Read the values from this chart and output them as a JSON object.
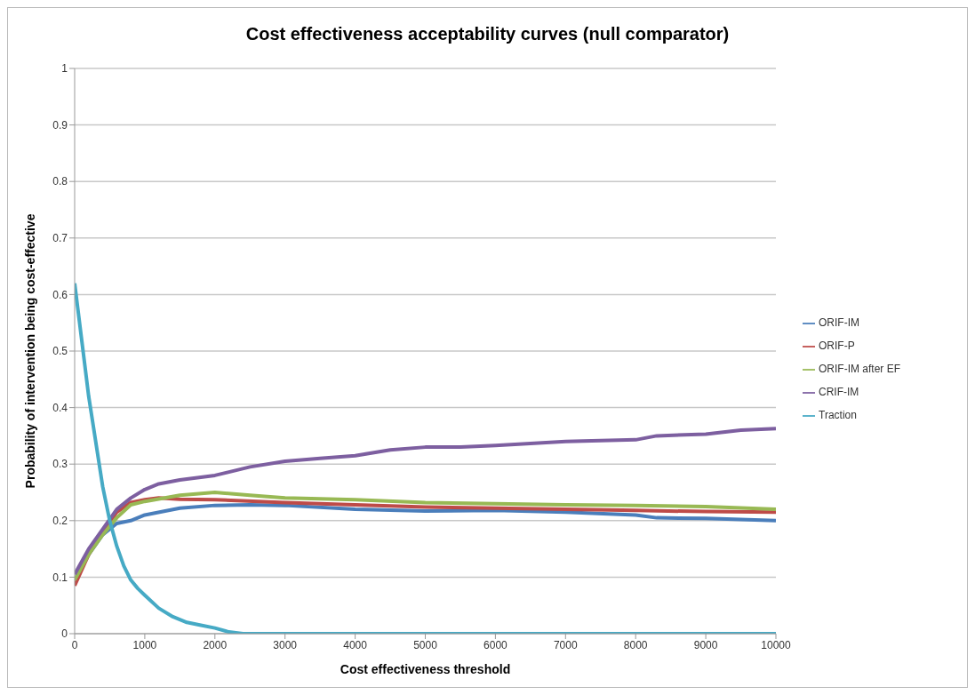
{
  "chart_data": {
    "type": "line",
    "title": "Cost effectiveness acceptability curves (null comparator)",
    "xlabel": "Cost effectiveness threshold",
    "ylabel": "Probability of intervention being cost-effective",
    "xlim": [
      0,
      10000
    ],
    "xticks": [
      0,
      1000,
      2000,
      3000,
      4000,
      5000,
      6000,
      7000,
      8000,
      9000,
      10000
    ],
    "ylim": [
      0,
      1
    ],
    "yticks": [
      0,
      0.1,
      0.2,
      0.3,
      0.4,
      0.5,
      0.6,
      0.7,
      0.8,
      0.9,
      1
    ],
    "grid": "y",
    "legend": "right",
    "marker": "none",
    "line_style": "solid",
    "series": [
      {
        "name": "ORIF-IM",
        "color": "#4a7ebb",
        "x": [
          0,
          200,
          400,
          600,
          800,
          1000,
          1500,
          2000,
          2500,
          3000,
          4000,
          5000,
          6000,
          7000,
          8000,
          8300,
          9000,
          10000
        ],
        "values": [
          0.095,
          0.14,
          0.175,
          0.195,
          0.2,
          0.21,
          0.222,
          0.227,
          0.228,
          0.227,
          0.22,
          0.217,
          0.218,
          0.215,
          0.21,
          0.205,
          0.204,
          0.2
        ]
      },
      {
        "name": "ORIF-P",
        "color": "#be4b48",
        "x": [
          0,
          200,
          400,
          600,
          800,
          1000,
          1200,
          1500,
          2000,
          3000,
          4000,
          5000,
          6000,
          7000,
          8000,
          9000,
          10000
        ],
        "values": [
          0.085,
          0.14,
          0.18,
          0.215,
          0.232,
          0.237,
          0.24,
          0.238,
          0.237,
          0.232,
          0.228,
          0.224,
          0.222,
          0.22,
          0.218,
          0.216,
          0.215
        ]
      },
      {
        "name": "ORIF-IM after EF",
        "color": "#98b954",
        "x": [
          0,
          200,
          400,
          600,
          800,
          1000,
          1500,
          2000,
          2500,
          3000,
          4000,
          5000,
          6000,
          7000,
          8000,
          9000,
          10000
        ],
        "values": [
          0.095,
          0.14,
          0.175,
          0.205,
          0.228,
          0.234,
          0.245,
          0.25,
          0.245,
          0.24,
          0.237,
          0.232,
          0.23,
          0.228,
          0.227,
          0.225,
          0.22
        ]
      },
      {
        "name": "CRIF-IM",
        "color": "#7d5fa0",
        "x": [
          0,
          200,
          400,
          600,
          800,
          1000,
          1200,
          1500,
          2000,
          2500,
          3000,
          3500,
          4000,
          4500,
          5000,
          5500,
          6000,
          7000,
          8000,
          8300,
          9000,
          9500,
          10000
        ],
        "values": [
          0.105,
          0.15,
          0.185,
          0.22,
          0.24,
          0.255,
          0.265,
          0.272,
          0.28,
          0.295,
          0.305,
          0.31,
          0.315,
          0.325,
          0.33,
          0.33,
          0.333,
          0.34,
          0.343,
          0.35,
          0.353,
          0.36,
          0.363
        ]
      },
      {
        "name": "Traction",
        "color": "#46aac5",
        "x": [
          0,
          100,
          200,
          300,
          400,
          500,
          600,
          700,
          800,
          900,
          1000,
          1200,
          1400,
          1600,
          1800,
          2000,
          2200,
          2400,
          10000
        ],
        "values": [
          0.62,
          0.52,
          0.42,
          0.34,
          0.26,
          0.2,
          0.155,
          0.12,
          0.095,
          0.08,
          0.068,
          0.045,
          0.03,
          0.02,
          0.015,
          0.01,
          0.003,
          0,
          0
        ]
      }
    ]
  }
}
